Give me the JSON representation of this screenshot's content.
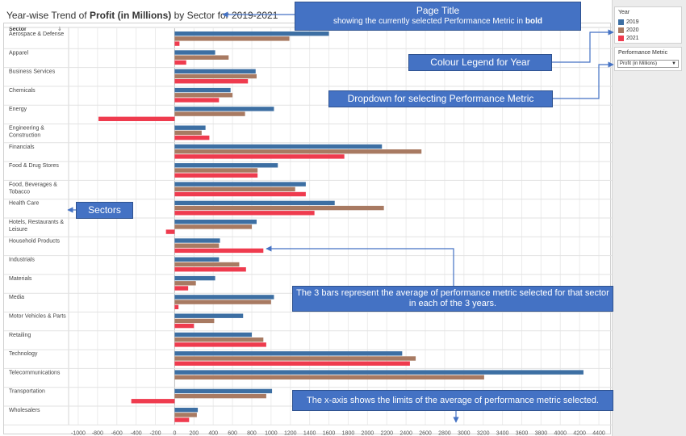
{
  "page": {
    "title_prefix": "Year-wise Trend of ",
    "title_metric": "Profit (in Millions)",
    "title_suffix": " by Sector for 2019-2021"
  },
  "legend": {
    "title": "Year",
    "items": [
      {
        "label": "2019",
        "color": "#3d6fa3"
      },
      {
        "label": "2020",
        "color": "#a87a62"
      },
      {
        "label": "2021",
        "color": "#ef3b4e"
      }
    ]
  },
  "metric_filter": {
    "label": "Performance Metric",
    "selected": "Profit (in Millions)"
  },
  "annotations": {
    "title_line1": "Page Title",
    "title_line2_prefix": "showing the currently selected Performance Metric in ",
    "title_line2_bold": "bold",
    "legend": "Colour Legend for Year",
    "dropdown": "Dropdown for selecting Performance Metric",
    "sectors": "Sectors",
    "bars": "The 3 bars represent the average of performance metric selected for that sector in each of the 3 years.",
    "xaxis": "The x-axis shows the limits of the average of performance metric selected."
  },
  "chart_data": {
    "type": "bar",
    "orientation": "horizontal",
    "row_header": "Sector",
    "sort_indicator": "⇕",
    "categories": [
      [
        "Aerospace & Defense"
      ],
      [
        "Apparel"
      ],
      [
        "Business Services"
      ],
      [
        "Chemicals"
      ],
      [
        "Energy"
      ],
      [
        "Engineering &",
        "Construction"
      ],
      [
        "Financials"
      ],
      [
        "Food & Drug Stores"
      ],
      [
        "Food, Beverages &",
        "Tobacco"
      ],
      [
        "Health Care"
      ],
      [
        "Hotels, Restaurants &",
        "Leisure"
      ],
      [
        "Household Products"
      ],
      [
        "Industrials"
      ],
      [
        "Materials"
      ],
      [
        "Media"
      ],
      [
        "Motor Vehicles & Parts"
      ],
      [
        "Retailing"
      ],
      [
        "Technology"
      ],
      [
        "Telecommunications"
      ],
      [
        "Transportation"
      ],
      [
        "Wholesalers"
      ]
    ],
    "series": [
      {
        "name": "2019",
        "color": "#3d6fa3",
        "values": [
          1600,
          420,
          840,
          580,
          1030,
          320,
          2150,
          1070,
          1360,
          1660,
          850,
          470,
          460,
          420,
          1030,
          710,
          800,
          2360,
          4240,
          1010,
          240
        ]
      },
      {
        "name": "2020",
        "color": "#a87a62",
        "values": [
          1190,
          560,
          850,
          600,
          730,
          280,
          2560,
          860,
          1250,
          2170,
          800,
          460,
          670,
          220,
          1000,
          410,
          920,
          2500,
          3210,
          950,
          230
        ]
      },
      {
        "name": "2021",
        "color": "#ef3b4e",
        "values": [
          50,
          120,
          760,
          460,
          -790,
          360,
          1760,
          860,
          1360,
          1450,
          -90,
          920,
          740,
          140,
          40,
          200,
          950,
          2440,
          null,
          -450,
          150
        ]
      }
    ],
    "xlim": [
      -1100,
      4500
    ],
    "xticks": [
      -1000,
      -800,
      -600,
      -400,
      -200,
      0,
      200,
      400,
      600,
      800,
      1000,
      1200,
      1400,
      1600,
      1800,
      2000,
      2200,
      2400,
      2600,
      2800,
      3000,
      3200,
      3400,
      3600,
      3800,
      4000,
      4200,
      4400
    ],
    "grid": true
  }
}
